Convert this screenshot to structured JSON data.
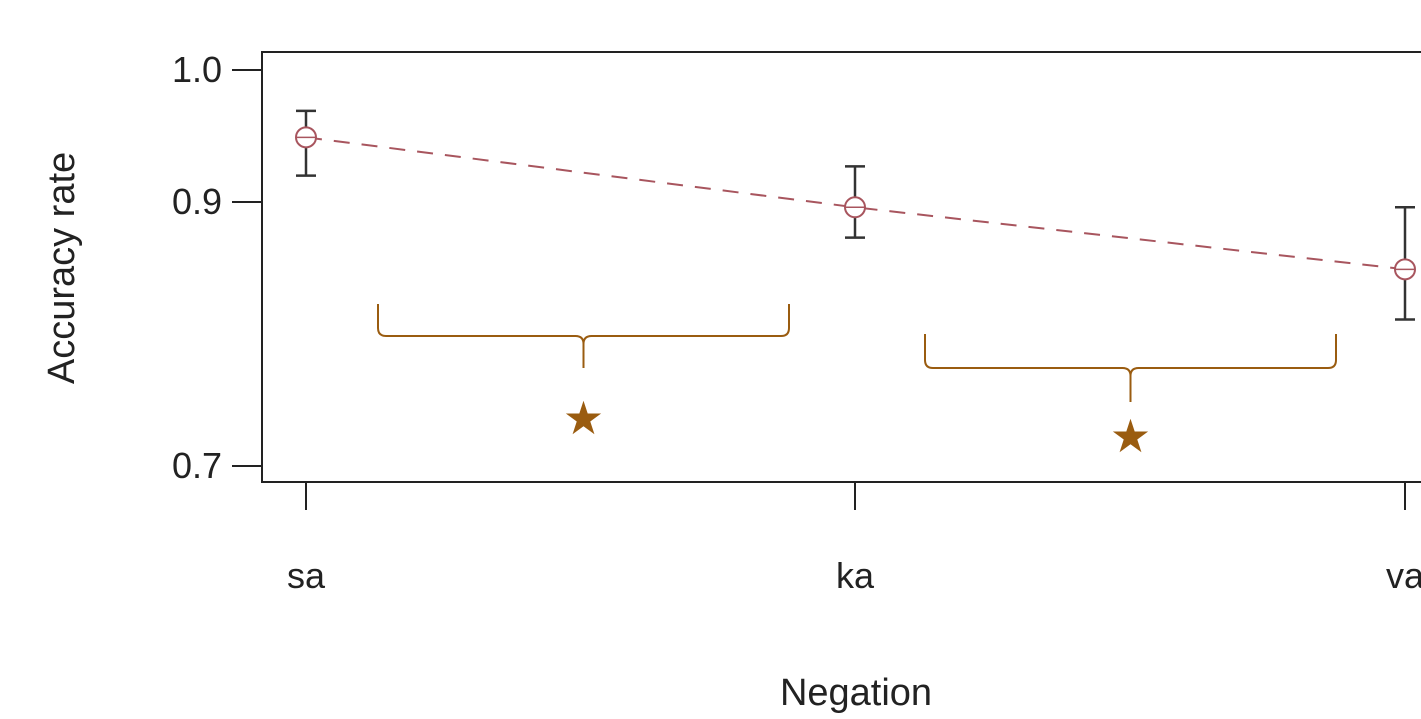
{
  "chart_data": {
    "type": "line",
    "xlabel": "Negation",
    "ylabel": "Accuracy rate",
    "categories": [
      "sa",
      "ka",
      "va"
    ],
    "ylim": [
      0.69,
      1.01
    ],
    "yticks": [
      {
        "value": 1.0,
        "label": "1.0"
      },
      {
        "value": 0.9,
        "label": "0.9"
      },
      {
        "value": 0.7,
        "label": "0.7"
      }
    ],
    "series": [
      {
        "values": [
          0.949,
          0.896,
          0.849
        ],
        "err_low": [
          0.92,
          0.873,
          0.811
        ],
        "err_high": [
          0.969,
          0.927,
          0.896
        ],
        "color": "#a8555e",
        "line_style": "dashed",
        "marker": "open-circle"
      }
    ],
    "annotations": [
      {
        "type": "significance-bracket",
        "between": [
          "sa",
          "ka"
        ],
        "symbol": "★",
        "color": "#9a5c10"
      },
      {
        "type": "significance-bracket",
        "between": [
          "ka",
          "va"
        ],
        "symbol": "★",
        "color": "#9a5c10"
      }
    ],
    "grid": false
  }
}
